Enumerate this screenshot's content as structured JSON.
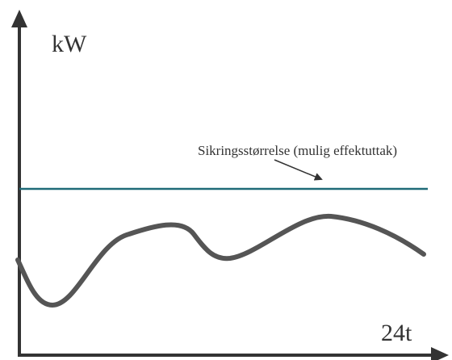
{
  "diagram": {
    "y_axis_label": "kW",
    "x_axis_label": "24t",
    "annotation": "Sikringsstørrelse (mulig effektuttak)"
  }
}
